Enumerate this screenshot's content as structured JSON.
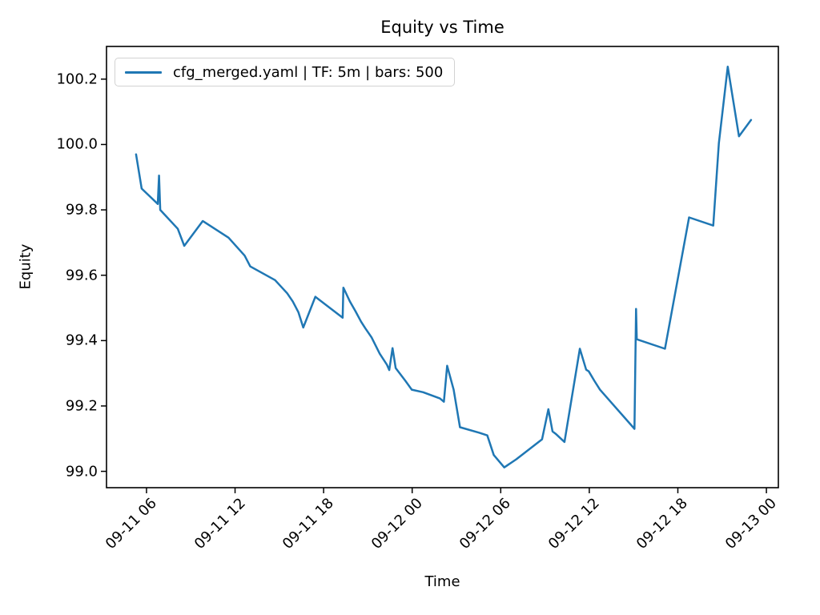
{
  "figure": {
    "title": "Equity vs Time",
    "xlabel": "Time",
    "ylabel": "Equity"
  },
  "legend": {
    "label": "cfg_merged.yaml | TF: 5m | bars: 500",
    "position": "upper left",
    "line_color": "#1f77b4"
  },
  "chart_data": {
    "type": "line",
    "title": "Equity vs Time",
    "xlabel": "Time",
    "ylabel": "Equity",
    "legend_label": "cfg_merged.yaml | TF: 5m | bars: 500",
    "grid": false,
    "line_color": "#1f77b4",
    "x_unit": "hours after 09-11 00:00",
    "xlim": [
      3.29,
      48.81
    ],
    "ylim": [
      98.95,
      100.3
    ],
    "x_ticks": [
      6,
      12,
      18,
      24,
      30,
      36,
      42,
      48
    ],
    "x_tick_labels": [
      "09-11 06",
      "09-11 12",
      "09-11 18",
      "09-12 00",
      "09-12 06",
      "09-12 12",
      "09-12 18",
      "09-13 00"
    ],
    "y_ticks": [
      99.0,
      99.2,
      99.4,
      99.6,
      99.8,
      100.0,
      100.2
    ],
    "y_tick_labels": [
      "99.0",
      "99.2",
      "99.4",
      "99.6",
      "99.8",
      "100.0",
      "100.2"
    ],
    "points": [
      [
        5.29,
        99.97
      ],
      [
        5.67,
        99.865
      ],
      [
        6.76,
        99.818
      ],
      [
        6.85,
        99.905
      ],
      [
        6.93,
        99.8
      ],
      [
        8.12,
        99.742
      ],
      [
        8.56,
        99.69
      ],
      [
        9.81,
        99.766
      ],
      [
        11.56,
        99.715
      ],
      [
        12.65,
        99.66
      ],
      [
        13.03,
        99.627
      ],
      [
        14.71,
        99.585
      ],
      [
        15.53,
        99.545
      ],
      [
        15.91,
        99.52
      ],
      [
        16.29,
        99.487
      ],
      [
        16.62,
        99.44
      ],
      [
        17.44,
        99.534
      ],
      [
        19.29,
        99.47
      ],
      [
        19.34,
        99.562
      ],
      [
        19.78,
        99.52
      ],
      [
        20.16,
        99.49
      ],
      [
        20.54,
        99.458
      ],
      [
        20.82,
        99.438
      ],
      [
        21.25,
        99.41
      ],
      [
        21.8,
        99.36
      ],
      [
        22.29,
        99.326
      ],
      [
        22.45,
        99.31
      ],
      [
        22.67,
        99.377
      ],
      [
        22.88,
        99.316
      ],
      [
        23.54,
        99.277
      ],
      [
        23.97,
        99.25
      ],
      [
        24.74,
        99.242
      ],
      [
        25.88,
        99.223
      ],
      [
        26.15,
        99.213
      ],
      [
        26.37,
        99.323
      ],
      [
        26.81,
        99.25
      ],
      [
        27.24,
        99.135
      ],
      [
        28.55,
        99.118
      ],
      [
        29.09,
        99.11
      ],
      [
        29.53,
        99.05
      ],
      [
        30.24,
        99.012
      ],
      [
        31.06,
        99.037
      ],
      [
        32.8,
        99.098
      ],
      [
        33.23,
        99.19
      ],
      [
        33.51,
        99.122
      ],
      [
        33.72,
        99.115
      ],
      [
        34.32,
        99.09
      ],
      [
        35.36,
        99.375
      ],
      [
        35.79,
        99.311
      ],
      [
        35.96,
        99.306
      ],
      [
        36.34,
        99.277
      ],
      [
        36.72,
        99.25
      ],
      [
        39.06,
        99.13
      ],
      [
        39.17,
        99.497
      ],
      [
        39.22,
        99.404
      ],
      [
        41.13,
        99.375
      ],
      [
        42.76,
        99.777
      ],
      [
        44.4,
        99.752
      ],
      [
        44.78,
        100.004
      ],
      [
        45.38,
        100.238
      ],
      [
        46.14,
        100.025
      ],
      [
        46.96,
        100.075
      ]
    ]
  }
}
